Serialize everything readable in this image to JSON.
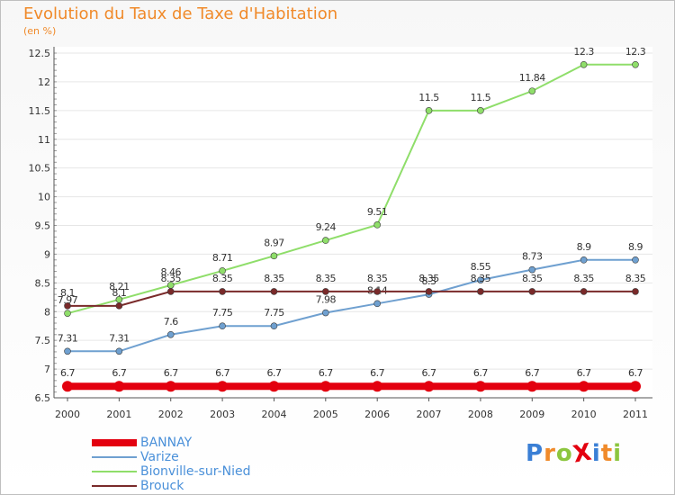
{
  "chart_data": {
    "type": "line",
    "title": "Evolution du Taux de Taxe d'Habitation",
    "ylabel": "(en %)",
    "x": [
      "2000",
      "2001",
      "2002",
      "2003",
      "2004",
      "2005",
      "2006",
      "2007",
      "2008",
      "2009",
      "2010",
      "2011"
    ],
    "ylim": [
      6.5,
      12.5
    ],
    "yticks": [
      "6.5",
      "7",
      "7.5",
      "8",
      "8.5",
      "9",
      "9.5",
      "10",
      "10.5",
      "11",
      "11.5",
      "12",
      "12.5"
    ],
    "series": [
      {
        "name": "BANNAY",
        "color": "#e3000f",
        "values": [
          6.7,
          6.7,
          6.7,
          6.7,
          6.7,
          6.7,
          6.7,
          6.7,
          6.7,
          6.7,
          6.7,
          6.7
        ],
        "labels": [
          "6.7",
          "6.7",
          "6.7",
          "6.7",
          "6.7",
          "6.7",
          "6.7",
          "6.7",
          "6.7",
          "6.7",
          "6.7",
          "6.7"
        ]
      },
      {
        "name": "Varize",
        "color": "#6fa0d0",
        "values": [
          7.31,
          7.31,
          7.6,
          7.75,
          7.75,
          7.98,
          8.14,
          8.3,
          8.55,
          8.73,
          8.9,
          8.9
        ],
        "labels": [
          "7.31",
          "7.31",
          "7.6",
          "7.75",
          "7.75",
          "7.98",
          "8.14",
          "8.3",
          "8.55",
          "8.73",
          "8.9",
          "8.9"
        ]
      },
      {
        "name": "Bionville-sur-Nied",
        "color": "#8fde6a",
        "values": [
          7.97,
          8.21,
          8.46,
          8.71,
          8.97,
          9.24,
          9.51,
          11.5,
          11.5,
          11.84,
          12.3,
          12.3
        ],
        "labels": [
          "7.97",
          "8.21",
          "8.46",
          "8.71",
          "8.97",
          "9.24",
          "9.51",
          "11.5",
          "11.5",
          "11.84",
          "12.3",
          "12.3"
        ]
      },
      {
        "name": "Brouck",
        "color": "#7a2a2a",
        "values": [
          8.1,
          8.1,
          8.35,
          8.35,
          8.35,
          8.35,
          8.35,
          8.35,
          8.35,
          8.35,
          8.35,
          8.35
        ],
        "labels": [
          "8.1",
          "8.1",
          "8.35",
          "8.35",
          "8.35",
          "8.35",
          "8.35",
          "8.35",
          "8.35",
          "8.35",
          "8.35",
          "8.35"
        ]
      }
    ]
  },
  "logo": {
    "text": "ProXiti",
    "letters": [
      "P",
      "r",
      "o",
      "X",
      "i",
      "t",
      "i"
    ],
    "colors": [
      "#3a7fd5",
      "#f08a2a",
      "#8cc63f",
      "#e3000f",
      "#3a7fd5",
      "#f08a2a",
      "#8cc63f"
    ]
  }
}
